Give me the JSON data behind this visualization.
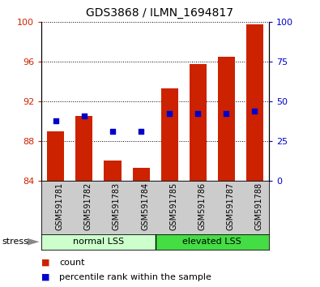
{
  "title": "GDS3868 / ILMN_1694817",
  "categories": [
    "GSM591781",
    "GSM591782",
    "GSM591783",
    "GSM591784",
    "GSM591785",
    "GSM591786",
    "GSM591787",
    "GSM591788"
  ],
  "bar_bottoms": [
    84,
    84,
    84,
    84,
    84,
    84,
    84,
    84
  ],
  "bar_tops": [
    89.0,
    90.5,
    86.0,
    85.3,
    93.3,
    95.7,
    96.5,
    99.7
  ],
  "blue_values": [
    90.0,
    90.5,
    89.0,
    89.0,
    90.8,
    90.8,
    90.8,
    91.0
  ],
  "ylim_left": [
    84,
    100
  ],
  "ylim_right": [
    0,
    100
  ],
  "yticks_left": [
    84,
    88,
    92,
    96,
    100
  ],
  "yticks_right": [
    0,
    25,
    50,
    75,
    100
  ],
  "bar_color": "#cc2200",
  "blue_color": "#0000cc",
  "bar_width": 0.6,
  "group1_label": "normal LSS",
  "group2_label": "elevated LSS",
  "stress_label": "stress",
  "legend_count": "count",
  "legend_percentile": "percentile rank within the sample",
  "group1_color": "#ccffcc",
  "group2_color": "#44dd44",
  "label_area_color": "#cccccc",
  "right_axis_color": "#0000cc",
  "left_axis_color": "#cc2200",
  "figsize": [
    3.95,
    3.54
  ],
  "dpi": 100
}
